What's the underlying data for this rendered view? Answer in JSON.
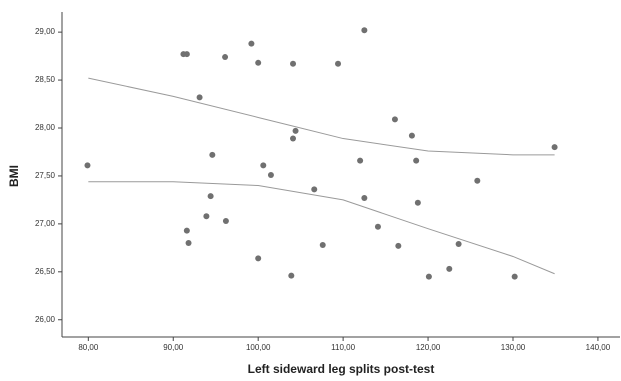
{
  "chart_data": {
    "type": "scatter",
    "x_label": "Left sideward leg splits post-test",
    "y_label": "BMI",
    "xlim": [
      76.9,
      142.6
    ],
    "ylim": [
      25.82,
      29.21
    ],
    "xticks": [
      {
        "value": 80,
        "label": "80,00"
      },
      {
        "value": 90,
        "label": "90,00"
      },
      {
        "value": 100,
        "label": "100,00"
      },
      {
        "value": 110,
        "label": "110,00"
      },
      {
        "value": 120,
        "label": "120,00"
      },
      {
        "value": 130,
        "label": "130,00"
      },
      {
        "value": 140,
        "label": "140,00"
      }
    ],
    "yticks": [
      {
        "value": 26,
        "label": "26,00"
      },
      {
        "value": 26.5,
        "label": "26,50"
      },
      {
        "value": 27,
        "label": "27,00"
      },
      {
        "value": 27.5,
        "label": "27,50"
      },
      {
        "value": 28,
        "label": "28,00"
      },
      {
        "value": 28.5,
        "label": "28,50"
      },
      {
        "value": 29,
        "label": "29,00"
      }
    ],
    "color": "#707070",
    "x": [
      79.9,
      91.2,
      91.6,
      93.1,
      94.6,
      94.4,
      93.9,
      91.6,
      91.8,
      96.1,
      96.2,
      99.2,
      100.0,
      100.6,
      101.5,
      100.0,
      104.1,
      104.4,
      104.1,
      106.6,
      103.9,
      107.6,
      109.4,
      112.5,
      112.0,
      112.5,
      114.1,
      116.1,
      118.1,
      118.6,
      118.8,
      116.5,
      120.1,
      122.5,
      123.6,
      125.8,
      130.2,
      134.9
    ],
    "values": [
      27.61,
      28.77,
      28.77,
      28.32,
      27.72,
      27.29,
      27.08,
      26.93,
      26.8,
      28.74,
      27.03,
      28.88,
      28.68,
      27.61,
      27.51,
      26.64,
      28.67,
      27.97,
      27.89,
      27.36,
      26.46,
      26.78,
      28.67,
      29.02,
      27.66,
      27.27,
      26.97,
      28.09,
      27.92,
      27.66,
      27.22,
      26.77,
      26.45,
      26.53,
      26.79,
      27.45,
      26.45,
      27.8
    ],
    "curves": [
      {
        "color": "#9a9a9a",
        "x": [
          80,
          90,
          100,
          110,
          120,
          130,
          134.9
        ],
        "values": [
          28.52,
          28.33,
          28.11,
          27.89,
          27.76,
          27.72,
          27.72
        ]
      },
      {
        "color": "#9a9a9a",
        "x": [
          80,
          90,
          100,
          110,
          120,
          130,
          134.9
        ],
        "values": [
          27.44,
          27.44,
          27.4,
          27.25,
          26.95,
          26.66,
          26.48
        ]
      }
    ]
  }
}
